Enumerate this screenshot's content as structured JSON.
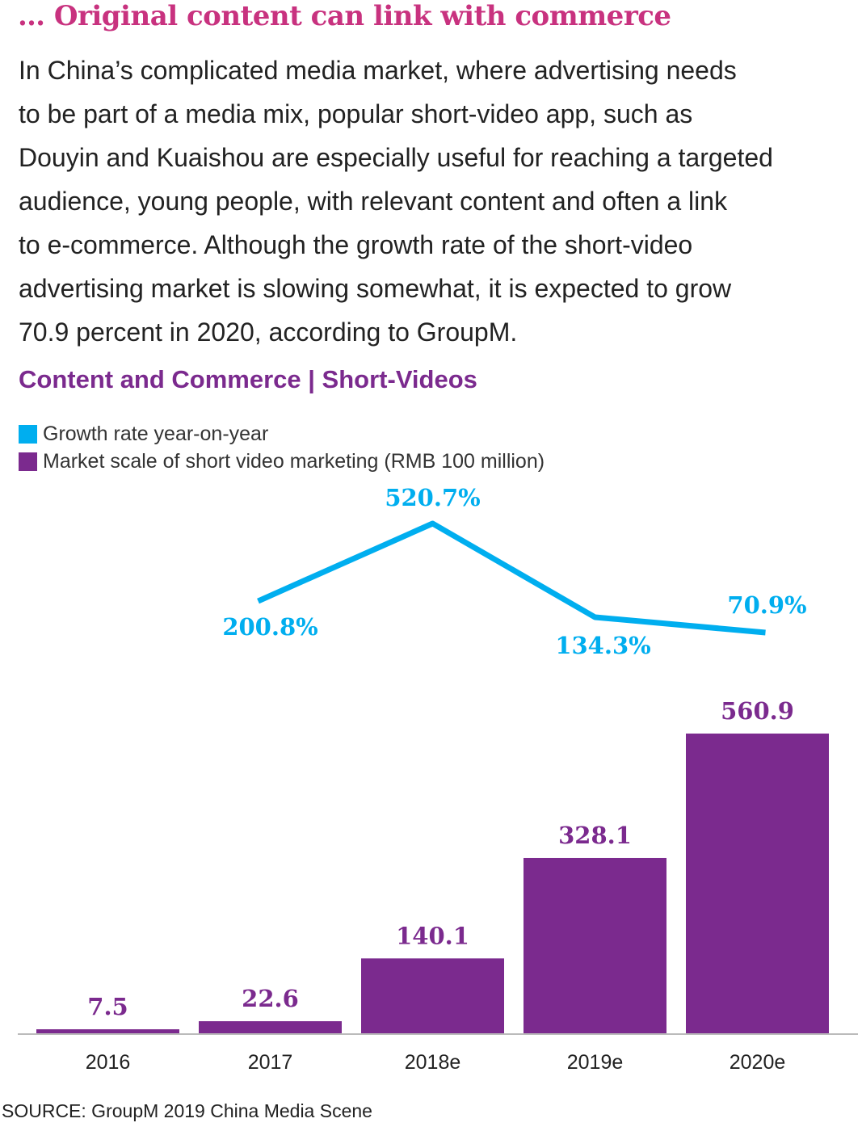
{
  "heading": "… Original content can link with commerce",
  "paragraph_lines": [
    "In China’s complicated media market, where advertising needs",
    "to be part of a media mix, popular short-video app, such as",
    "Douyin and Kuaishou are especially useful for reaching a targeted",
    "audience, young people, with relevant content and often a link",
    "to e-commerce. Although the growth rate of the short-video",
    "advertising market is slowing somewhat, it is expected to grow",
    "70.9 percent in 2020, according to GroupM."
  ],
  "source": "SOURCE: GroupM 2019 China Media Scene",
  "colors": {
    "heading": "#c8327f",
    "title": "#7b2a8e",
    "bar": "#7b2a8e",
    "line": "#00aeef"
  },
  "chart_data": {
    "type": "bar",
    "title": "Content and Commerce | Short-Videos",
    "categories": [
      "2016",
      "2017",
      "2018e",
      "2019e",
      "2020e"
    ],
    "series": [
      {
        "name": "Market scale of short video marketing (RMB 100 million)",
        "type": "bar",
        "values": [
          7.5,
          22.6,
          140.1,
          328.1,
          560.9
        ],
        "labels": [
          "7.5",
          "22.6",
          "140.1",
          "328.1",
          "560.9"
        ]
      },
      {
        "name": "Growth rate year-on-year",
        "type": "line",
        "x": [
          "2017",
          "2018e",
          "2019e",
          "2020e"
        ],
        "values": [
          200.8,
          520.7,
          134.3,
          70.9
        ],
        "labels": [
          "200.8%",
          "520.7%",
          "134.3%",
          "70.9%"
        ]
      }
    ],
    "legend_position": "top-left",
    "grid": false
  }
}
